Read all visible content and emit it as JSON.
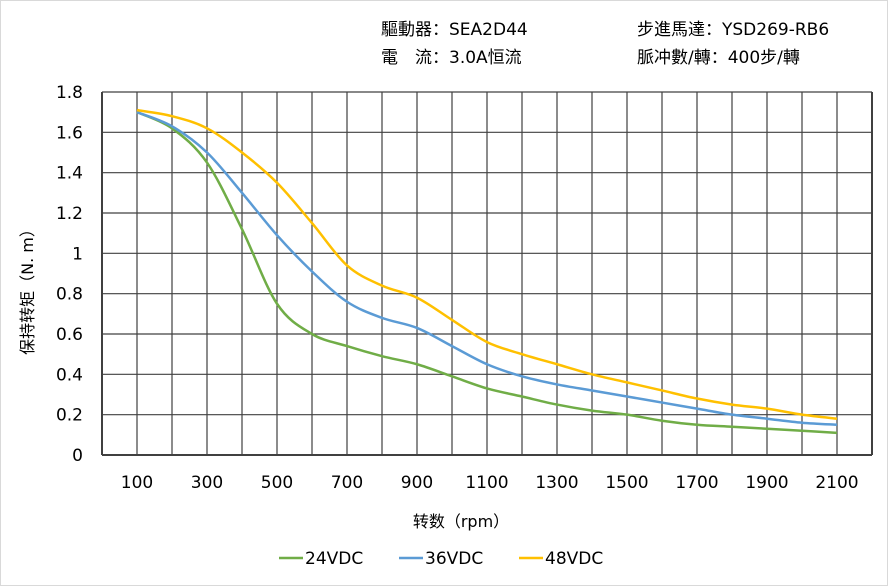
{
  "header": {
    "driver_label": "驅動器：",
    "driver_value": "SEA2D44",
    "current_label": "電　流：",
    "current_value": "3.0A恒流",
    "motor_label": "步進馬達：",
    "motor_value": "YSD269-RB6",
    "pulse_label": "脈冲數/轉：",
    "pulse_value": "400步/轉"
  },
  "chart_data": {
    "type": "line",
    "title": "",
    "xlabel": "转数（rpm）",
    "ylabel": "保持转矩（N. m）",
    "xlim": [
      0,
      2200
    ],
    "ylim": [
      0,
      1.8
    ],
    "xticks": [
      100,
      300,
      500,
      700,
      900,
      1100,
      1300,
      1500,
      1700,
      1900,
      2100
    ],
    "yticks": [
      0,
      0.2,
      0.4,
      0.6,
      0.8,
      1,
      1.2,
      1.4,
      1.6,
      1.8
    ],
    "ytick_labels": [
      "0",
      "0.2",
      "0.4",
      "0.6",
      "0.8",
      "1",
      "1.2",
      "1.4",
      "1.6",
      "1.8"
    ],
    "grid": true,
    "legend": "bottom",
    "x": [
      100,
      200,
      300,
      400,
      500,
      600,
      700,
      800,
      900,
      1000,
      1100,
      1200,
      1300,
      1400,
      1500,
      1600,
      1700,
      1800,
      1900,
      2000,
      2100
    ],
    "series": [
      {
        "name": "24VDC",
        "color": "#70ad47",
        "values": [
          1.7,
          1.62,
          1.45,
          1.12,
          0.75,
          0.6,
          0.54,
          0.49,
          0.45,
          0.39,
          0.33,
          0.29,
          0.25,
          0.22,
          0.2,
          0.17,
          0.15,
          0.14,
          0.13,
          0.12,
          0.11
        ]
      },
      {
        "name": "36VDC",
        "color": "#5b9bd5",
        "values": [
          1.7,
          1.63,
          1.5,
          1.3,
          1.09,
          0.91,
          0.76,
          0.68,
          0.63,
          0.54,
          0.45,
          0.39,
          0.35,
          0.32,
          0.29,
          0.26,
          0.23,
          0.2,
          0.18,
          0.16,
          0.15
        ]
      },
      {
        "name": "48VDC",
        "color": "#ffc000",
        "values": [
          1.71,
          1.68,
          1.62,
          1.5,
          1.35,
          1.15,
          0.94,
          0.84,
          0.78,
          0.67,
          0.56,
          0.5,
          0.45,
          0.4,
          0.36,
          0.32,
          0.28,
          0.25,
          0.23,
          0.2,
          0.18
        ]
      }
    ]
  }
}
